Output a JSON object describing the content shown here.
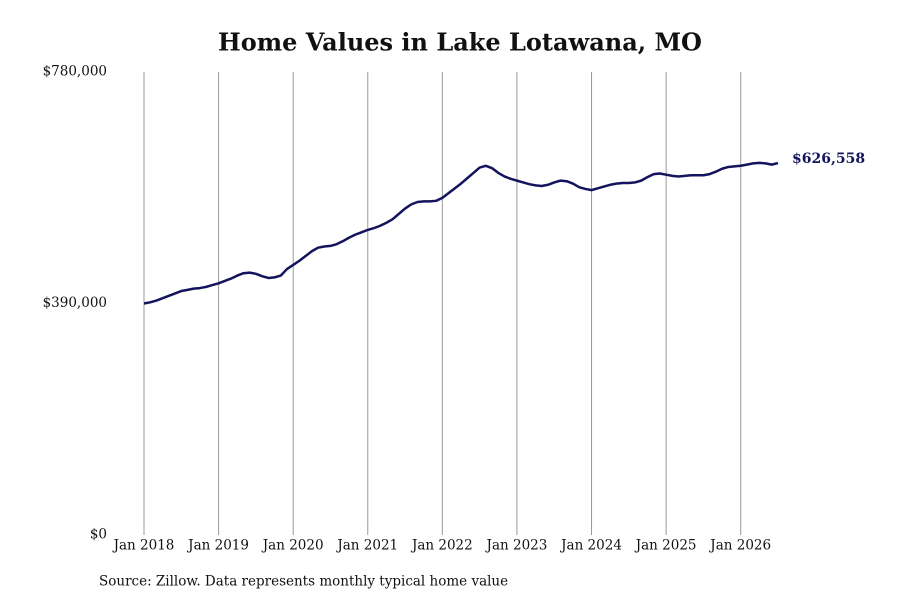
{
  "chart_data": {
    "type": "line",
    "title": "Home Values in Lake Lotawana, MO",
    "source": "Source: Zillow. Data represents monthly typical home value",
    "color": "#14145e",
    "grid": true,
    "x": [
      "2018-01",
      "2018-02",
      "2018-03",
      "2018-04",
      "2018-05",
      "2018-06",
      "2018-07",
      "2018-08",
      "2018-09",
      "2018-10",
      "2018-11",
      "2018-12",
      "2019-01",
      "2019-02",
      "2019-03",
      "2019-04",
      "2019-05",
      "2019-06",
      "2019-07",
      "2019-08",
      "2019-09",
      "2019-10",
      "2019-11",
      "2019-12",
      "2020-01",
      "2020-02",
      "2020-03",
      "2020-04",
      "2020-05",
      "2020-06",
      "2020-07",
      "2020-08",
      "2020-09",
      "2020-10",
      "2020-11",
      "2020-12",
      "2021-01",
      "2021-02",
      "2021-03",
      "2021-04",
      "2021-05",
      "2021-06",
      "2021-07",
      "2021-08",
      "2021-09",
      "2021-10",
      "2021-11",
      "2021-12",
      "2022-01",
      "2022-02",
      "2022-03",
      "2022-04",
      "2022-05",
      "2022-06",
      "2022-07",
      "2022-08",
      "2022-09",
      "2022-10",
      "2022-11",
      "2022-12",
      "2023-01",
      "2023-02",
      "2023-03",
      "2023-04",
      "2023-05",
      "2023-06",
      "2023-07",
      "2023-08",
      "2023-09",
      "2023-10",
      "2023-11",
      "2023-12",
      "2024-01",
      "2024-02",
      "2024-03",
      "2024-04",
      "2024-05",
      "2024-06",
      "2024-07",
      "2024-08",
      "2024-09",
      "2024-10",
      "2024-11",
      "2024-12",
      "2025-01",
      "2025-02",
      "2025-03",
      "2025-04",
      "2025-05",
      "2025-06",
      "2025-07",
      "2025-08",
      "2025-09",
      "2025-10",
      "2025-11",
      "2025-12",
      "2026-01",
      "2026-02",
      "2026-03",
      "2026-04",
      "2026-05",
      "2026-06",
      "2026-07"
    ],
    "values": [
      390000,
      392000,
      395000,
      399000,
      403000,
      407000,
      411000,
      413000,
      415000,
      416000,
      418000,
      421000,
      424000,
      428000,
      432000,
      437000,
      441000,
      442000,
      440000,
      436000,
      433000,
      434000,
      437000,
      448000,
      455000,
      462000,
      470000,
      478000,
      484000,
      486000,
      487000,
      490000,
      495000,
      501000,
      506000,
      510000,
      514000,
      517000,
      521000,
      526000,
      532000,
      541000,
      550000,
      557000,
      561000,
      562000,
      562000,
      563000,
      568000,
      576000,
      584000,
      592000,
      601000,
      610000,
      619000,
      622000,
      618000,
      610000,
      604000,
      600000,
      597000,
      594000,
      591000,
      589000,
      588000,
      590000,
      594000,
      597000,
      596000,
      592000,
      586000,
      583000,
      581000,
      584000,
      587000,
      590000,
      592000,
      593000,
      593000,
      594000,
      597000,
      603000,
      608000,
      609000,
      607000,
      605000,
      604000,
      605000,
      606000,
      606000,
      606000,
      608000,
      612000,
      617000,
      620000,
      621000,
      622000,
      624000,
      626000,
      627000,
      626000,
      624000,
      626558
    ],
    "value_labels": [
      null,
      null,
      null,
      null,
      null,
      null,
      null,
      null,
      null,
      null,
      null,
      null,
      null,
      null,
      null,
      null,
      null,
      null,
      null,
      null,
      null,
      null,
      null,
      null,
      null,
      null,
      null,
      null,
      null,
      null,
      null,
      null,
      null,
      null,
      null,
      null,
      null,
      null,
      null,
      null,
      null,
      null,
      null,
      null,
      null,
      null,
      null,
      null,
      null,
      null,
      null,
      null,
      null,
      null,
      null,
      null,
      null,
      null,
      null,
      null,
      null,
      null,
      null,
      null,
      null,
      null,
      null,
      null,
      null,
      null,
      null,
      null,
      null,
      null,
      null,
      null,
      null,
      null,
      null,
      null,
      null,
      null,
      null,
      null,
      null,
      null,
      null,
      null,
      null,
      null,
      null,
      null,
      null,
      null,
      null,
      null,
      null,
      null,
      null,
      null,
      null,
      null,
      "$626,558"
    ],
    "xlim": [
      "2018-01",
      "2026-07"
    ],
    "xticks": [
      {
        "value": "2018-01",
        "label": "Jan 2018"
      },
      {
        "value": "2019-01",
        "label": "Jan 2019"
      },
      {
        "value": "2020-01",
        "label": "Jan 2020"
      },
      {
        "value": "2021-01",
        "label": "Jan 2021"
      },
      {
        "value": "2022-01",
        "label": "Jan 2022"
      },
      {
        "value": "2023-01",
        "label": "Jan 2023"
      },
      {
        "value": "2024-01",
        "label": "Jan 2024"
      },
      {
        "value": "2025-01",
        "label": "Jan 2025"
      },
      {
        "value": "2026-01",
        "label": "Jan 2026"
      }
    ],
    "ylim": [
      0,
      780000
    ],
    "yticks": [
      {
        "value": 0,
        "label": "$0"
      },
      {
        "value": 390000,
        "label": "$390,000"
      },
      {
        "value": 780000,
        "label": "$780,000"
      }
    ]
  }
}
